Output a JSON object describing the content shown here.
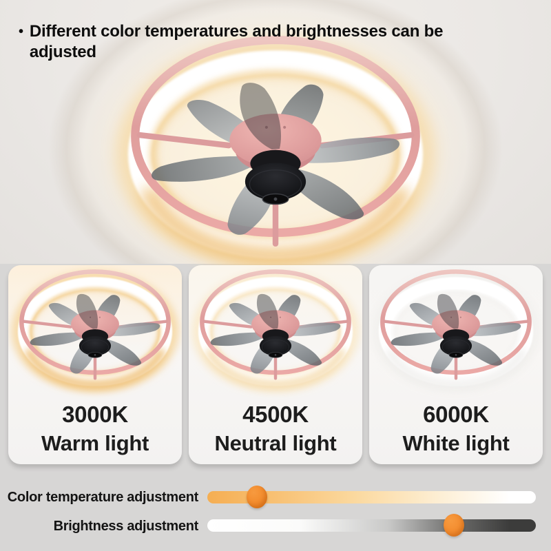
{
  "header": {
    "bullet": "•",
    "title": "Different color temperatures and brightnesses can be adjusted"
  },
  "hero": {
    "alt": "Pink ring ceiling fan light with warm LED glow, black motor and smoke gray blades",
    "halo": "#f6dcab",
    "inner_glow": "#f3d093",
    "bottom_arc": "#f0c37c",
    "card_top": "#f2ede6"
  },
  "panels": [
    {
      "temp": "3000K",
      "label": "Warm light",
      "halo": "#f6d7a0",
      "inner_glow": "#f3cd8c",
      "bottom_arc": "#efbf75",
      "card_top": "#fdf0dc"
    },
    {
      "temp": "4500K",
      "label": "Neutral light",
      "halo": "#f9e9c9",
      "inner_glow": "#f8e2ba",
      "bottom_arc": "#f5dcae",
      "card_top": "#fbf6ec"
    },
    {
      "temp": "6000K",
      "label": "White light",
      "halo": "#f1f0ed",
      "inner_glow": "#ffffff",
      "bottom_arc": "#f0efed",
      "card_top": "#f6f5f3"
    }
  ],
  "sliders": [
    {
      "label": "Color temperature adjustment",
      "value_pct": 15,
      "knob_color": "#ee7e1b",
      "track_stops": [
        "#f5ae52 0%",
        "#f8c276 22%",
        "#fbd99f 45%",
        "#fdeed3 70%",
        "#ffffff 92%",
        "#ffffff 100%"
      ]
    },
    {
      "label": "Brightness adjustment",
      "value_pct": 75,
      "knob_color": "#f08121",
      "track_stops": [
        "#ffffff 0%",
        "#fbfbfa 28%",
        "#c9c9c8 55%",
        "#6a6a69 76%",
        "#3c3c3b 92%",
        "#3c3c3b 100%"
      ]
    }
  ],
  "product_colors": {
    "ring_pink": "#e2a2a1",
    "blade_gray": "#878e94",
    "motor_black": "#17171a",
    "background_gray": "#d7d6d5"
  }
}
